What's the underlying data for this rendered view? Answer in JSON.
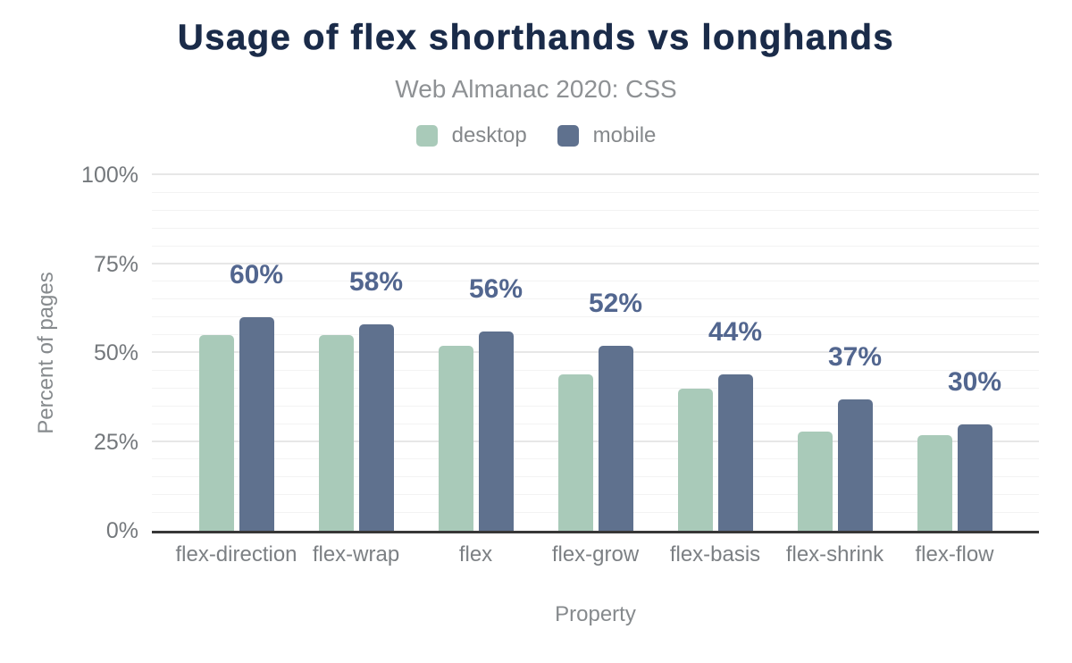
{
  "chart_data": {
    "type": "bar",
    "title": "Usage of flex shorthands vs longhands",
    "subtitle": "Web Almanac 2020: CSS",
    "categories": [
      "flex-direction",
      "flex-wrap",
      "flex",
      "flex-grow",
      "flex-basis",
      "flex-shrink",
      "flex-flow"
    ],
    "series": [
      {
        "name": "desktop",
        "values": [
          55,
          55,
          52,
          44,
          40,
          28,
          27
        ]
      },
      {
        "name": "mobile",
        "values": [
          60,
          58,
          56,
          52,
          44,
          37,
          30
        ]
      }
    ],
    "bar_labels": {
      "series": "mobile",
      "values": [
        "60%",
        "58%",
        "56%",
        "52%",
        "44%",
        "37%",
        "30%"
      ]
    },
    "xlabel": "Property",
    "ylabel": "Percent of pages",
    "ylim": [
      0,
      100
    ],
    "yticks": [
      {
        "value": 0,
        "label": "0%"
      },
      {
        "value": 25,
        "label": "25%"
      },
      {
        "value": 50,
        "label": "50%"
      },
      {
        "value": 75,
        "label": "75%"
      },
      {
        "value": 100,
        "label": "100%"
      }
    ],
    "grid": {
      "minor_step": 5,
      "major_values": [
        25,
        50,
        75,
        100
      ],
      "legend_position": "top"
    }
  },
  "colors": {
    "title": "#1a2b49",
    "subtitle": "#8e9194",
    "desktop": "#a9cab9",
    "mobile": "#5f718e",
    "data_label": "#52668f",
    "tick_text": "#74787c",
    "category_text": "#7c8084",
    "gray_text": "#85888b",
    "axis_title_text": "#868a8d",
    "axis_line": "#373737",
    "grid_major": "#e7e7e7",
    "grid_minor": "#f3f3f3"
  }
}
